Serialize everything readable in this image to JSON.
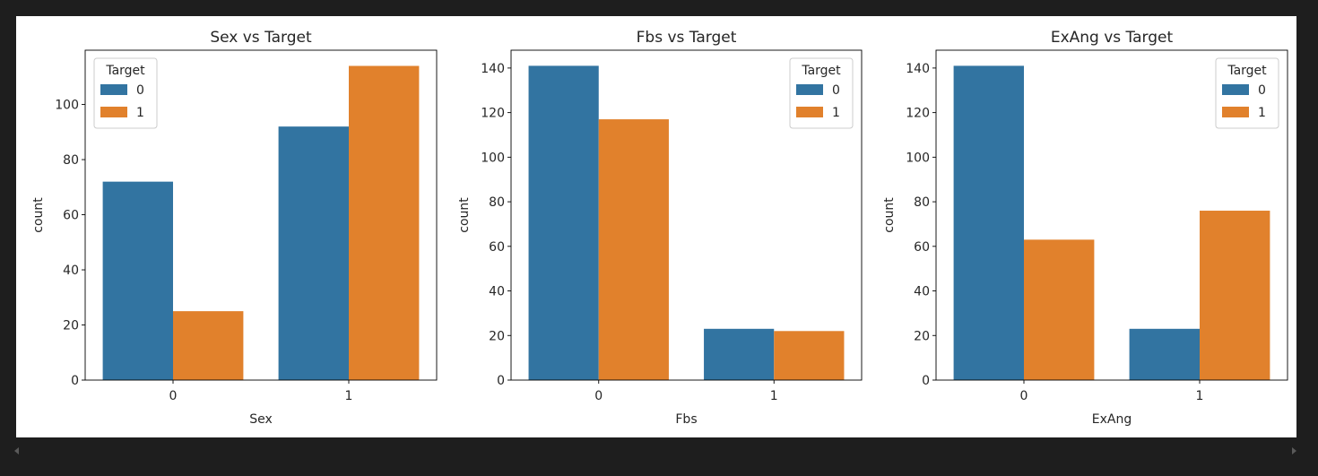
{
  "colors": {
    "series_0": "#3274a1",
    "series_1": "#e1812c"
  },
  "chart_data": [
    {
      "type": "bar",
      "title": "Sex vs Target",
      "xlabel": "Sex",
      "ylabel": "count",
      "categories": [
        "0",
        "1"
      ],
      "series": [
        {
          "name": "0",
          "values": [
            72,
            92
          ]
        },
        {
          "name": "1",
          "values": [
            25,
            114
          ]
        }
      ],
      "ylim": [
        0,
        119.7
      ],
      "yticks": [
        0,
        20,
        40,
        60,
        80,
        100
      ],
      "legend": {
        "title": "Target",
        "placement": "top-left"
      },
      "grid": false
    },
    {
      "type": "bar",
      "title": "Fbs vs Target",
      "xlabel": "Fbs",
      "ylabel": "count",
      "categories": [
        "0",
        "1"
      ],
      "series": [
        {
          "name": "0",
          "values": [
            141,
            23
          ]
        },
        {
          "name": "1",
          "values": [
            117,
            22
          ]
        }
      ],
      "ylim": [
        0,
        148
      ],
      "yticks": [
        0,
        20,
        40,
        60,
        80,
        100,
        120,
        140
      ],
      "legend": {
        "title": "Target",
        "placement": "top-right"
      },
      "grid": false
    },
    {
      "type": "bar",
      "title": "ExAng vs Target",
      "xlabel": "ExAng",
      "ylabel": "count",
      "categories": [
        "0",
        "1"
      ],
      "series": [
        {
          "name": "0",
          "values": [
            141,
            23
          ]
        },
        {
          "name": "1",
          "values": [
            63,
            76
          ]
        }
      ],
      "ylim": [
        0,
        148
      ],
      "yticks": [
        0,
        20,
        40,
        60,
        80,
        100,
        120,
        140
      ],
      "legend": {
        "title": "Target",
        "placement": "top-right"
      },
      "grid": false
    }
  ]
}
